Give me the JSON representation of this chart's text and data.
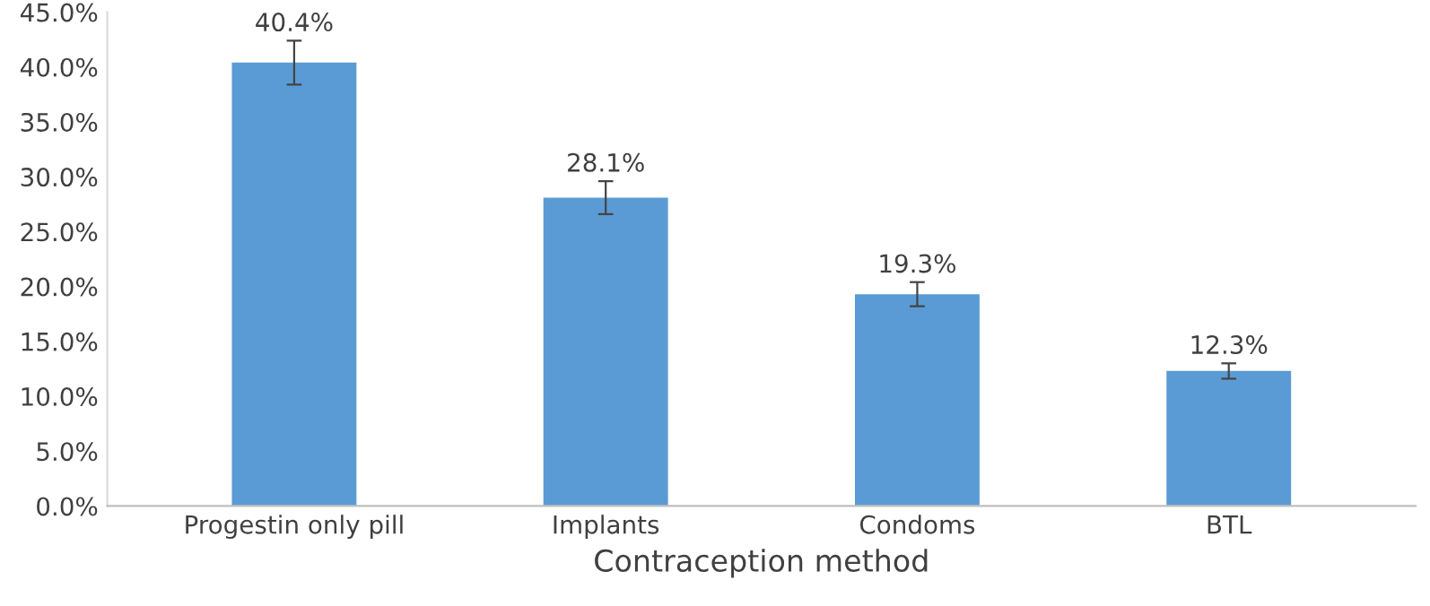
{
  "chart_data": {
    "type": "bar",
    "xlabel": "Contraception method",
    "categories": [
      "Progestin only pill",
      "Implants",
      "Condoms",
      "BTL"
    ],
    "values": [
      40.4,
      28.1,
      19.3,
      12.3
    ],
    "errors": [
      2.0,
      1.5,
      1.1,
      0.7
    ],
    "value_labels": [
      "40.4%",
      "28.1%",
      "19.3%",
      "12.3%"
    ],
    "color": "#5b9bd5",
    "ylim": [
      0,
      45
    ],
    "yticks": [
      {
        "value": 0,
        "label": "0.0%"
      },
      {
        "value": 5,
        "label": "5.0%"
      },
      {
        "value": 10,
        "label": "10.0%"
      },
      {
        "value": 15,
        "label": "15.0%"
      },
      {
        "value": 20,
        "label": "20.0%"
      },
      {
        "value": 25,
        "label": "25.0%"
      },
      {
        "value": 30,
        "label": "30.0%"
      },
      {
        "value": 35,
        "label": "35.0%"
      },
      {
        "value": 40,
        "label": "40.0%"
      },
      {
        "value": 45,
        "label": "45.0%"
      }
    ],
    "grid": false,
    "legend": false
  }
}
